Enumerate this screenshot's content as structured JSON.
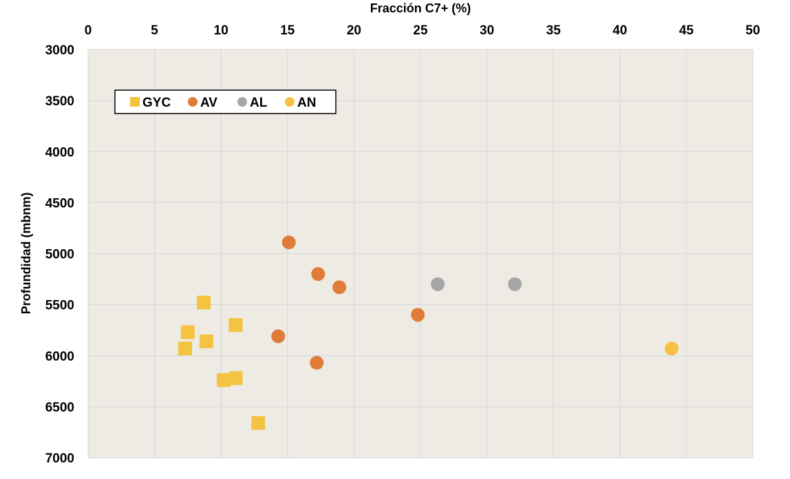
{
  "chart_data": {
    "type": "scatter",
    "xlabel": "Fracción C7+ (%)",
    "ylabel": "Profundidad (mbnm)",
    "x_axis_position": "top",
    "y_axis_inverted": true,
    "xlim": [
      0,
      50
    ],
    "ylim": [
      3000,
      7000
    ],
    "x_ticks": [
      "0",
      "5",
      "10",
      "15",
      "20",
      "25",
      "30",
      "35",
      "40",
      "45",
      "50"
    ],
    "y_ticks": [
      "3000",
      "3500",
      "4000",
      "4500",
      "5000",
      "5500",
      "6000",
      "6500",
      "7000"
    ],
    "grid": true,
    "legend_position": "top-left",
    "plot_background": "#eeebe4",
    "grid_color": "#d9d9d9",
    "series": [
      {
        "name": "GYC",
        "marker": "square",
        "color": "#f5c342",
        "points": [
          {
            "x": 8.7,
            "y": 5480
          },
          {
            "x": 7.5,
            "y": 5770
          },
          {
            "x": 11.1,
            "y": 5700
          },
          {
            "x": 8.9,
            "y": 5860
          },
          {
            "x": 7.3,
            "y": 5930
          },
          {
            "x": 10.2,
            "y": 6240
          },
          {
            "x": 11.1,
            "y": 6220
          },
          {
            "x": 12.8,
            "y": 6660
          }
        ]
      },
      {
        "name": "AV",
        "marker": "circle",
        "color": "#e07b39",
        "points": [
          {
            "x": 15.1,
            "y": 4890
          },
          {
            "x": 17.3,
            "y": 5200
          },
          {
            "x": 18.9,
            "y": 5330
          },
          {
            "x": 24.8,
            "y": 5600
          },
          {
            "x": 14.3,
            "y": 5810
          },
          {
            "x": 17.2,
            "y": 6070
          }
        ]
      },
      {
        "name": "AL",
        "marker": "circle",
        "color": "#a6a6a6",
        "points": [
          {
            "x": 26.3,
            "y": 5300
          },
          {
            "x": 32.1,
            "y": 5300
          }
        ]
      },
      {
        "name": "AN",
        "marker": "circle",
        "color": "#f6c242",
        "points": [
          {
            "x": 43.9,
            "y": 5930
          }
        ]
      }
    ]
  }
}
